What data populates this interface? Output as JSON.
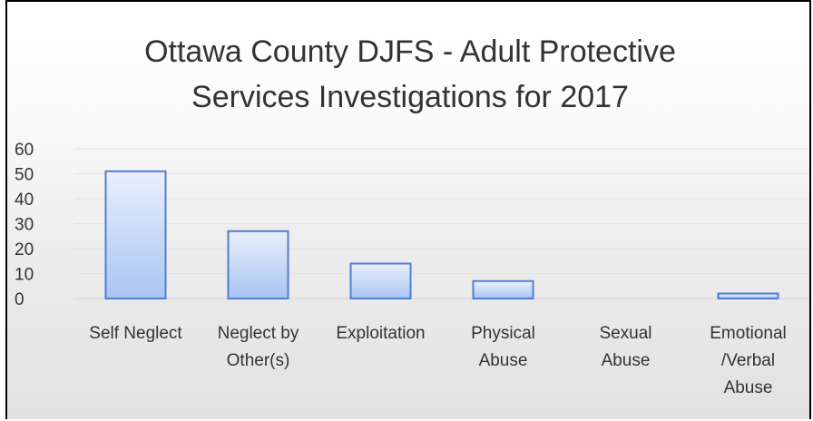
{
  "chart_data": {
    "type": "bar",
    "title_lines": [
      "Ottawa County DJFS - Adult Protective",
      "Services Investigations for 2017"
    ],
    "categories": [
      [
        "Self Neglect"
      ],
      [
        "Neglect by",
        "Other(s)"
      ],
      [
        "Exploitation"
      ],
      [
        "Physical",
        "Abuse"
      ],
      [
        "Sexual",
        "Abuse"
      ],
      [
        "Emotional",
        "/Verbal",
        "Abuse"
      ]
    ],
    "values": [
      51,
      27,
      14,
      7,
      0,
      2
    ],
    "ylim": [
      0,
      60
    ],
    "yticks": [
      0,
      10,
      20,
      30,
      40,
      50,
      60
    ],
    "grid": true,
    "legend": "none",
    "colors": {
      "bar_top": "#e9f0fc",
      "bar_bottom": "#aac4f2",
      "bar_border": "#4f7ed2",
      "grid": "#e2e2e2",
      "axis": "#d6d6d6",
      "text": "#333333"
    }
  }
}
